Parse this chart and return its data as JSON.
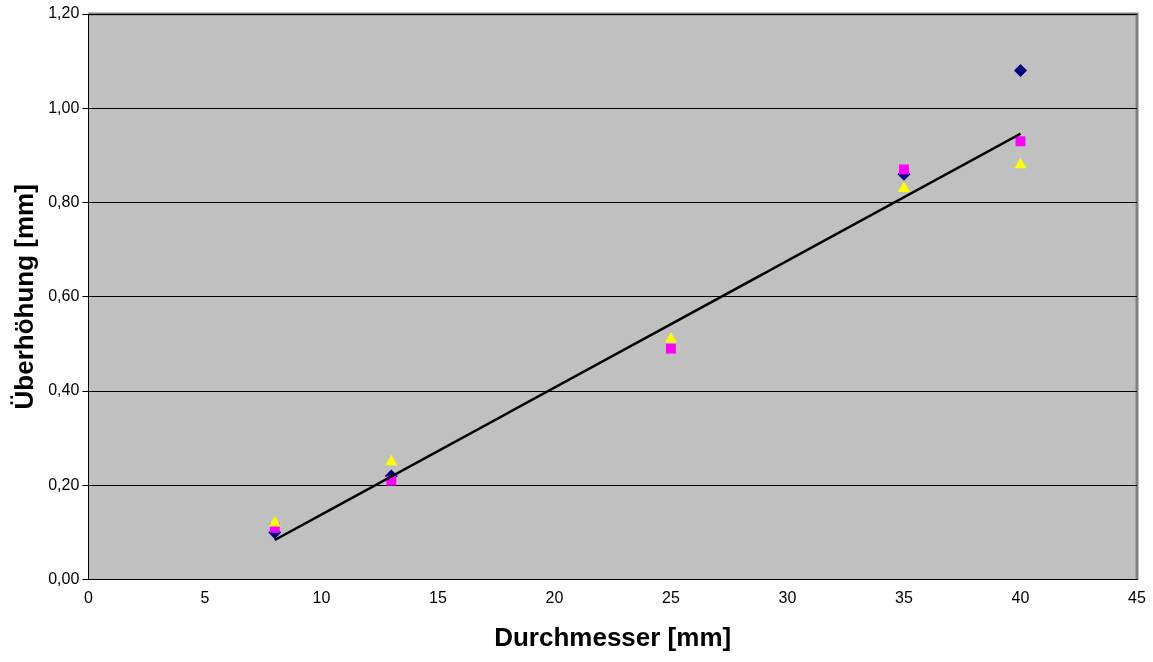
{
  "chart_data": {
    "type": "scatter",
    "xlabel": "Durchmesser [mm]",
    "ylabel": "Überhöhung [mm]",
    "xlim": [
      0,
      45
    ],
    "xticks": [
      0,
      5,
      10,
      15,
      20,
      25,
      30,
      35,
      40,
      45
    ],
    "ylim": [
      0,
      1.2
    ],
    "yticks": [
      {
        "value": 0,
        "label": "0,00"
      },
      {
        "value": 0.2,
        "label": "0,20"
      },
      {
        "value": 0.4,
        "label": "0,40"
      },
      {
        "value": 0.6,
        "label": "0,60"
      },
      {
        "value": 0.8,
        "label": "0,80"
      },
      {
        "value": 1.0,
        "label": "1,00"
      },
      {
        "value": 1.2,
        "label": "1,20"
      }
    ],
    "grid": "y",
    "legend": false,
    "x": [
      8,
      13,
      25,
      35,
      40
    ],
    "series": [
      {
        "color": "#000080",
        "marker": "diamond",
        "values": [
          0.1,
          0.22,
          null,
          0.86,
          1.08
        ]
      },
      {
        "color": "#ff00ff",
        "marker": "square",
        "values": [
          0.11,
          0.21,
          0.49,
          0.87,
          0.93
        ]
      },
      {
        "color": "#ffff00",
        "marker": "triangle",
        "values": [
          0.12,
          0.25,
          0.51,
          0.83,
          0.88
        ]
      },
      {
        "type": "line",
        "color": "#000000",
        "marker": "none",
        "x": [
          8,
          40
        ],
        "values": [
          0.084,
          0.946
        ]
      }
    ]
  }
}
